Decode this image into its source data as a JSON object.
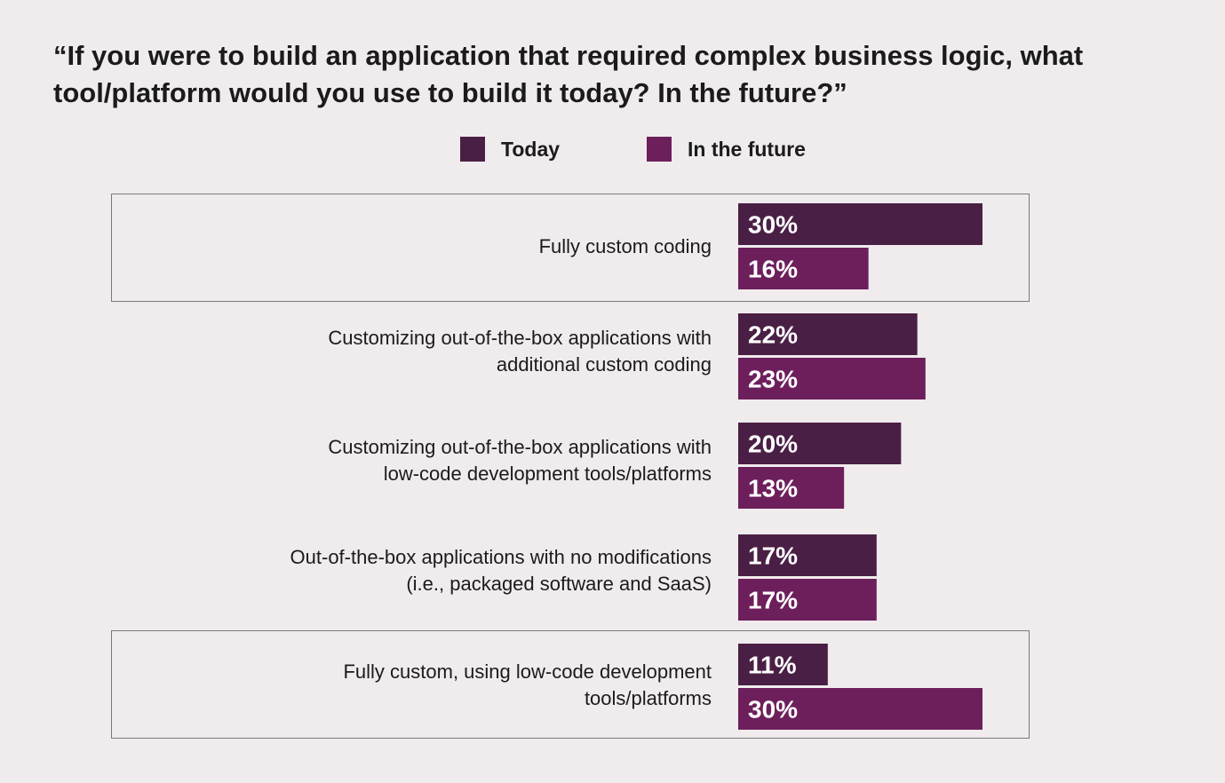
{
  "title": "“If you were to build an application that required complex business logic, what tool/platform would you use to build it today? In the future?”",
  "colors": {
    "today": "#4a1f45",
    "future": "#6d1f5c",
    "background": "#f0eced",
    "box_border": "#7a7a7a"
  },
  "legend": [
    {
      "label": "Today",
      "color": "#4a1f45"
    },
    {
      "label": "In the future",
      "color": "#6d1f5c"
    }
  ],
  "chart_data": {
    "type": "bar",
    "orientation": "horizontal",
    "title": "“If you were to build an application that required complex business logic, what tool/platform would you use to build it today? In the future?”",
    "categories": [
      [
        "Fully custom coding"
      ],
      [
        "Customizing out-of-the-box applications with",
        "additional custom coding"
      ],
      [
        "Customizing out-of-the-box applications with",
        "low-code development tools/platforms"
      ],
      [
        "Out-of-the-box applications with no modifications",
        "(i.e., packaged software and SaaS)"
      ],
      [
        "Fully custom, using low-code development",
        "tools/platforms"
      ]
    ],
    "series": [
      {
        "name": "Today",
        "values": [
          30,
          22,
          20,
          17,
          11
        ],
        "labels": [
          "30%",
          "22%",
          "20%",
          "17%",
          "11%"
        ]
      },
      {
        "name": "In the future",
        "values": [
          16,
          23,
          13,
          17,
          30
        ],
        "labels": [
          "16%",
          "23%",
          "13%",
          "17%",
          "30%"
        ]
      }
    ],
    "highlighted_categories": [
      0,
      4
    ],
    "legend_position": "top",
    "grid": false,
    "unit": "%"
  }
}
